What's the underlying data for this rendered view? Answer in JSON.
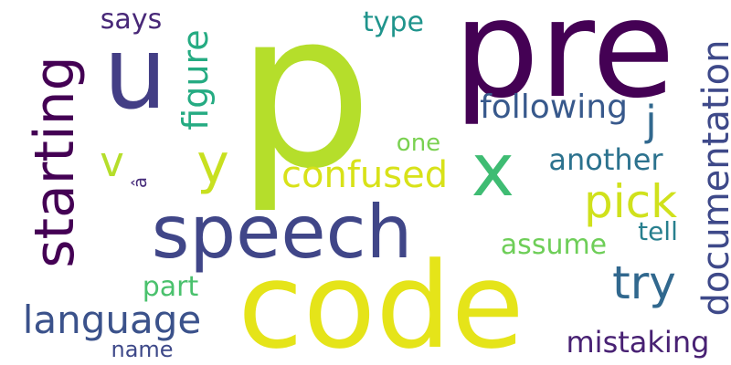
{
  "words": [
    {
      "text": "p",
      "color": "#b5de2b"
    },
    {
      "text": "pre",
      "color": "#440154"
    },
    {
      "text": "code",
      "color": "#e5e419"
    },
    {
      "text": "u",
      "color": "#433e85"
    },
    {
      "text": "x",
      "color": "#3fbc73"
    },
    {
      "text": "speech",
      "color": "#404688"
    },
    {
      "text": "starting",
      "color": "#440154"
    },
    {
      "text": "y",
      "color": "#c8e020"
    },
    {
      "text": "confused",
      "color": "#d8e219"
    },
    {
      "text": "pick",
      "color": "#d0e11c"
    },
    {
      "text": "language",
      "color": "#3b528b"
    },
    {
      "text": "try",
      "color": "#31688e"
    },
    {
      "text": "v",
      "color": "#b5de2b"
    },
    {
      "text": "documentation",
      "color": "#3e4989"
    },
    {
      "text": "following",
      "color": "#38598c"
    },
    {
      "text": "mistaking",
      "color": "#482173"
    },
    {
      "text": "assume",
      "color": "#6ece58"
    },
    {
      "text": "another",
      "color": "#2c728e"
    },
    {
      "text": "type",
      "color": "#1f948c"
    },
    {
      "text": "says",
      "color": "#482878"
    },
    {
      "text": "figure",
      "color": "#25ab82"
    },
    {
      "text": "j",
      "color": "#31688e"
    },
    {
      "text": "one",
      "color": "#7ad151"
    },
    {
      "text": "part",
      "color": "#4ac16d"
    },
    {
      "text": "name",
      "color": "#3e4989"
    },
    {
      "text": "tell",
      "color": "#277f8e"
    },
    {
      "text": "â",
      "color": "#472d7b"
    }
  ]
}
